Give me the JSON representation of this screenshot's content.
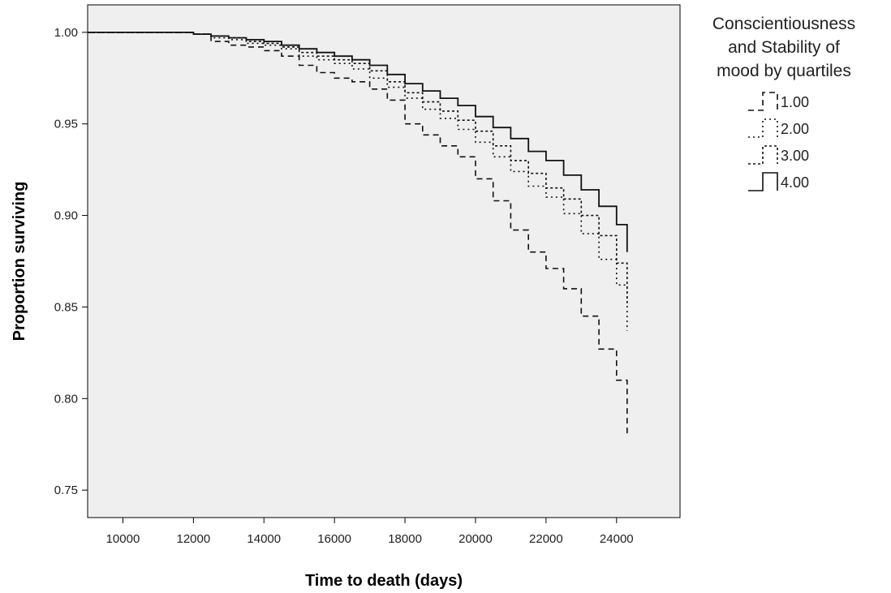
{
  "chart_data": {
    "type": "line",
    "title": "",
    "xlabel": "Time to death (days)",
    "ylabel": "Proportion surviving",
    "xlim": [
      9000,
      25800
    ],
    "ylim": [
      0.735,
      1.015
    ],
    "x_ticks": [
      10000,
      12000,
      14000,
      16000,
      18000,
      20000,
      22000,
      24000
    ],
    "y_ticks": [
      0.75,
      0.8,
      0.85,
      0.9,
      0.95,
      1.0
    ],
    "x_tick_labels": [
      "10000",
      "12000",
      "14000",
      "16000",
      "18000",
      "20000",
      "22000",
      "24000"
    ],
    "y_tick_labels": [
      "0.75",
      "0.80",
      "0.85",
      "0.90",
      "0.95",
      "1.00"
    ],
    "grid": false,
    "plot_background": "#efefef",
    "legend": {
      "title": "Conscientiousness and Stability of mood by quartiles",
      "title_lines": [
        "Conscientiousness",
        "and Stability of",
        "mood by quartiles"
      ],
      "placement": "right"
    },
    "series": [
      {
        "name": "1.00",
        "style": "dashed",
        "x": [
          9000,
          11500,
          12000,
          12500,
          13000,
          13500,
          14000,
          14500,
          15000,
          15500,
          16000,
          16500,
          17000,
          17500,
          18000,
          18500,
          19000,
          19500,
          20000,
          20500,
          21000,
          21500,
          22000,
          22500,
          23000,
          23500,
          24000,
          24300
        ],
        "y": [
          1.0,
          1.0,
          0.999,
          0.995,
          0.993,
          0.992,
          0.99,
          0.987,
          0.982,
          0.978,
          0.975,
          0.973,
          0.969,
          0.963,
          0.95,
          0.944,
          0.938,
          0.932,
          0.92,
          0.908,
          0.892,
          0.88,
          0.871,
          0.86,
          0.845,
          0.827,
          0.81,
          0.779
        ]
      },
      {
        "name": "2.00",
        "style": "dotted",
        "x": [
          9000,
          11500,
          12000,
          12500,
          13000,
          13500,
          14000,
          14500,
          15000,
          15500,
          16000,
          16500,
          17000,
          17500,
          18000,
          18500,
          19000,
          19500,
          20000,
          20500,
          21000,
          21500,
          22000,
          22500,
          23000,
          23500,
          24000,
          24300
        ],
        "y": [
          1.0,
          1.0,
          0.999,
          0.997,
          0.996,
          0.994,
          0.993,
          0.991,
          0.987,
          0.985,
          0.983,
          0.98,
          0.975,
          0.97,
          0.964,
          0.958,
          0.953,
          0.947,
          0.94,
          0.932,
          0.924,
          0.916,
          0.91,
          0.901,
          0.89,
          0.876,
          0.862,
          0.837
        ]
      },
      {
        "name": "3.00",
        "style": "short-dashed",
        "x": [
          9000,
          11500,
          12000,
          12500,
          13000,
          13500,
          14000,
          14500,
          15000,
          15500,
          16000,
          16500,
          17000,
          17500,
          18000,
          18500,
          19000,
          19500,
          20000,
          20500,
          21000,
          21500,
          22000,
          22500,
          23000,
          23500,
          24000,
          24300
        ],
        "y": [
          1.0,
          1.0,
          0.999,
          0.998,
          0.997,
          0.995,
          0.994,
          0.992,
          0.989,
          0.987,
          0.985,
          0.983,
          0.979,
          0.973,
          0.967,
          0.962,
          0.957,
          0.952,
          0.946,
          0.938,
          0.93,
          0.923,
          0.915,
          0.909,
          0.9,
          0.889,
          0.874,
          0.852
        ]
      },
      {
        "name": "4.00",
        "style": "solid",
        "x": [
          9000,
          11500,
          12000,
          12500,
          13000,
          13500,
          14000,
          14500,
          15000,
          15500,
          16000,
          16500,
          17000,
          17500,
          18000,
          18500,
          19000,
          19500,
          20000,
          20500,
          21000,
          21500,
          22000,
          22500,
          23000,
          23500,
          24000,
          24300
        ],
        "y": [
          1.0,
          1.0,
          0.999,
          0.998,
          0.997,
          0.996,
          0.995,
          0.993,
          0.991,
          0.989,
          0.987,
          0.985,
          0.982,
          0.977,
          0.972,
          0.968,
          0.964,
          0.96,
          0.954,
          0.948,
          0.942,
          0.935,
          0.93,
          0.922,
          0.914,
          0.905,
          0.895,
          0.88
        ]
      }
    ]
  }
}
